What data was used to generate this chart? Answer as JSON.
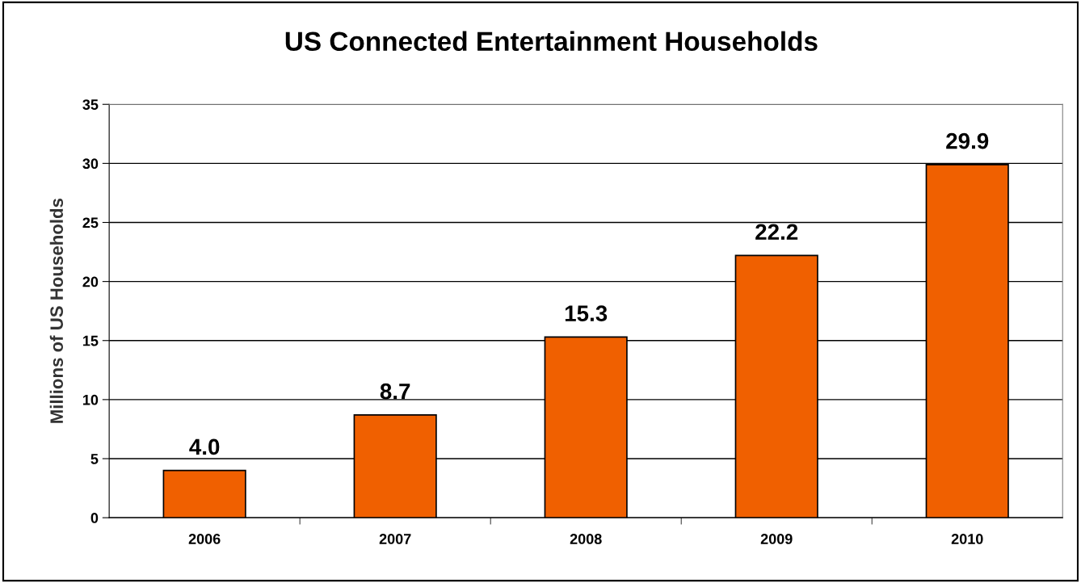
{
  "chart_data": {
    "type": "bar",
    "title": "US Connected Entertainment Households",
    "ylabel": "Millions of US Households",
    "categories": [
      "2006",
      "2007",
      "2008",
      "2009",
      "2010"
    ],
    "values": [
      4.0,
      8.7,
      15.3,
      22.2,
      29.9
    ],
    "value_labels": [
      "4.0",
      "8.7",
      "15.3",
      "22.2",
      "29.9"
    ],
    "color": "#f06000",
    "ylim": [
      0,
      35
    ],
    "yticks": [
      0,
      5,
      10,
      15,
      20,
      25,
      30,
      35
    ],
    "grid": "y",
    "legend": false
  }
}
